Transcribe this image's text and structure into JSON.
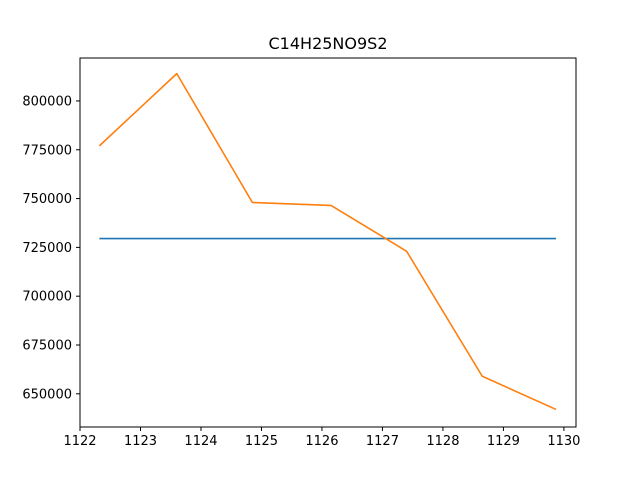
{
  "chart_data": {
    "type": "line",
    "title": "C14H25NO9S2",
    "xlabel": "",
    "ylabel": "",
    "xlim": [
      1122.0,
      1130.2
    ],
    "ylim": [
      633000,
      822000
    ],
    "xticks": [
      1122,
      1123,
      1124,
      1125,
      1126,
      1127,
      1128,
      1129,
      1130
    ],
    "yticks": [
      650000,
      675000,
      700000,
      725000,
      750000,
      775000,
      800000
    ],
    "grid": false,
    "series": [
      {
        "color": "#1f77b4",
        "x": [
          1122.32,
          1129.87
        ],
        "y": [
          729500,
          729500
        ]
      },
      {
        "color": "#ff7f0e",
        "x": [
          1122.32,
          1123.6,
          1124.85,
          1126.15,
          1127.4,
          1128.65,
          1129.87
        ],
        "y": [
          777000,
          814000,
          748000,
          746500,
          723000,
          659000,
          642000
        ]
      }
    ]
  }
}
